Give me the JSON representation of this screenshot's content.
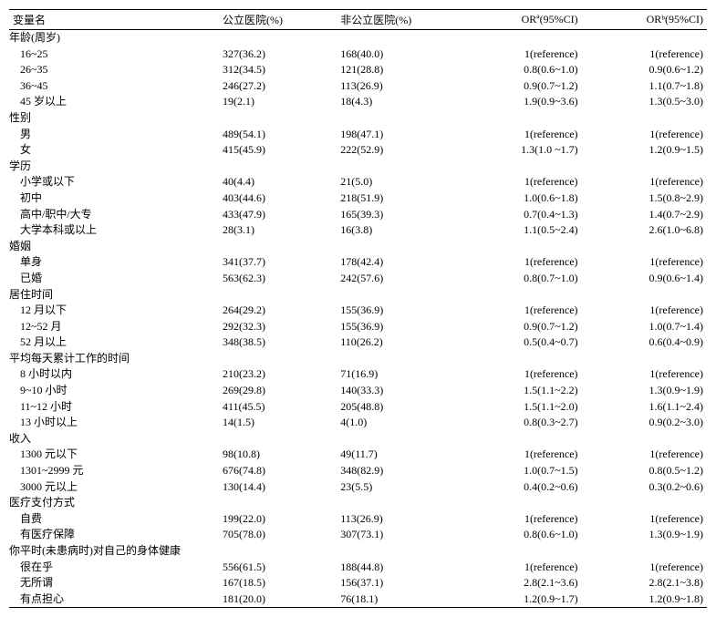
{
  "headers": {
    "var": "变量名",
    "pub": "公立医院(%)",
    "nonpub": "非公立医院(%)",
    "ora": "ORª(95%CI)",
    "orb": "ORᵇ(95%CI)"
  },
  "rows": [
    {
      "type": "group",
      "var": "年龄(周岁)"
    },
    {
      "type": "sub",
      "var": "16~25",
      "pub": "327(36.2)",
      "nonpub": "168(40.0)",
      "ora": "1(reference)",
      "orb": "1(reference)"
    },
    {
      "type": "sub",
      "var": "26~35",
      "pub": "312(34.5)",
      "nonpub": "121(28.8)",
      "ora": "0.8(0.6~1.0)",
      "orb": "0.9(0.6~1.2)"
    },
    {
      "type": "sub",
      "var": "36~45",
      "pub": "246(27.2)",
      "nonpub": "113(26.9)",
      "ora": "0.9(0.7~1.2)",
      "orb": "1.1(0.7~1.8)"
    },
    {
      "type": "sub",
      "var": "45 岁以上",
      "pub": "19(2.1)",
      "nonpub": "18(4.3)",
      "ora": "1.9(0.9~3.6)",
      "orb": "1.3(0.5~3.0)"
    },
    {
      "type": "group",
      "var": "性别"
    },
    {
      "type": "sub",
      "var": "男",
      "pub": "489(54.1)",
      "nonpub": "198(47.1)",
      "ora": "1(reference)",
      "orb": "1(reference)"
    },
    {
      "type": "sub",
      "var": "女",
      "pub": "415(45.9)",
      "nonpub": "222(52.9)",
      "ora": "1.3(1.0 ~1.7)",
      "orb": "1.2(0.9~1.5)"
    },
    {
      "type": "group",
      "var": "学历"
    },
    {
      "type": "sub",
      "var": "小学或以下",
      "pub": "40(4.4)",
      "nonpub": "21(5.0)",
      "ora": "1(reference)",
      "orb": "1(reference)"
    },
    {
      "type": "sub",
      "var": "初中",
      "pub": "403(44.6)",
      "nonpub": "218(51.9)",
      "ora": "1.0(0.6~1.8)",
      "orb": "1.5(0.8~2.9)"
    },
    {
      "type": "sub",
      "var": "高中/职中/大专",
      "pub": "433(47.9)",
      "nonpub": "165(39.3)",
      "ora": "0.7(0.4~1.3)",
      "orb": "1.4(0.7~2.9)"
    },
    {
      "type": "sub",
      "var": "大学本科或以上",
      "pub": "28(3.1)",
      "nonpub": "16(3.8)",
      "ora": "1.1(0.5~2.4)",
      "orb": "2.6(1.0~6.8)"
    },
    {
      "type": "group",
      "var": "婚姻"
    },
    {
      "type": "sub",
      "var": "单身",
      "pub": "341(37.7)",
      "nonpub": "178(42.4)",
      "ora": "1(reference)",
      "orb": "1(reference)"
    },
    {
      "type": "sub",
      "var": "已婚",
      "pub": "563(62.3)",
      "nonpub": "242(57.6)",
      "ora": "0.8(0.7~1.0)",
      "orb": "0.9(0.6~1.4)"
    },
    {
      "type": "group",
      "var": "居住时间"
    },
    {
      "type": "sub",
      "var": "12 月以下",
      "pub": "264(29.2)",
      "nonpub": "155(36.9)",
      "ora": "1(reference)",
      "orb": "1(reference)"
    },
    {
      "type": "sub",
      "var": "12~52 月",
      "pub": "292(32.3)",
      "nonpub": "155(36.9)",
      "ora": "0.9(0.7~1.2)",
      "orb": "1.0(0.7~1.4)"
    },
    {
      "type": "sub",
      "var": "52 月以上",
      "pub": "348(38.5)",
      "nonpub": "110(26.2)",
      "ora": "0.5(0.4~0.7)",
      "orb": "0.6(0.4~0.9)"
    },
    {
      "type": "group",
      "var": "平均每天累计工作的时间"
    },
    {
      "type": "sub",
      "var": "8 小时以内",
      "pub": "210(23.2)",
      "nonpub": "71(16.9)",
      "ora": "1(reference)",
      "orb": "1(reference)"
    },
    {
      "type": "sub",
      "var": "9~10 小时",
      "pub": "269(29.8)",
      "nonpub": "140(33.3)",
      "ora": "1.5(1.1~2.2)",
      "orb": "1.3(0.9~1.9)"
    },
    {
      "type": "sub",
      "var": "11~12 小时",
      "pub": "411(45.5)",
      "nonpub": "205(48.8)",
      "ora": "1.5(1.1~2.0)",
      "orb": "1.6(1.1~2.4)"
    },
    {
      "type": "sub",
      "var": "13 小时以上",
      "pub": "14(1.5)",
      "nonpub": "4(1.0)",
      "ora": "0.8(0.3~2.7)",
      "orb": "0.9(0.2~3.0)"
    },
    {
      "type": "group",
      "var": "收入"
    },
    {
      "type": "sub",
      "var": "1300 元以下",
      "pub": "98(10.8)",
      "nonpub": "49(11.7)",
      "ora": "1(reference)",
      "orb": "1(reference)"
    },
    {
      "type": "sub",
      "var": "1301~2999 元",
      "pub": "676(74.8)",
      "nonpub": "348(82.9)",
      "ora": "1.0(0.7~1.5)",
      "orb": "0.8(0.5~1.2)"
    },
    {
      "type": "sub",
      "var": "3000 元以上",
      "pub": "130(14.4)",
      "nonpub": "23(5.5)",
      "ora": "0.4(0.2~0.6)",
      "orb": "0.3(0.2~0.6)"
    },
    {
      "type": "group",
      "var": "医疗支付方式"
    },
    {
      "type": "sub",
      "var": "自费",
      "pub": "199(22.0)",
      "nonpub": "113(26.9)",
      "ora": "1(reference)",
      "orb": "1(reference)"
    },
    {
      "type": "sub",
      "var": "有医疗保障",
      "pub": "705(78.0)",
      "nonpub": "307(73.1)",
      "ora": "0.8(0.6~1.0)",
      "orb": "1.3(0.9~1.9)"
    },
    {
      "type": "group",
      "var": "你平时(未患病时)对自己的身体健康"
    },
    {
      "type": "sub",
      "var": "很在乎",
      "pub": "556(61.5)",
      "nonpub": "188(44.8)",
      "ora": "1(reference)",
      "orb": "1(reference)"
    },
    {
      "type": "sub",
      "var": "无所谓",
      "pub": "167(18.5)",
      "nonpub": "156(37.1)",
      "ora": "2.8(2.1~3.6)",
      "orb": "2.8(2.1~3.8)"
    },
    {
      "type": "sub",
      "var": "有点担心",
      "pub": "181(20.0)",
      "nonpub": "76(18.1)",
      "ora": "1.2(0.9~1.7)",
      "orb": "1.2(0.9~1.8)",
      "last": true
    }
  ]
}
